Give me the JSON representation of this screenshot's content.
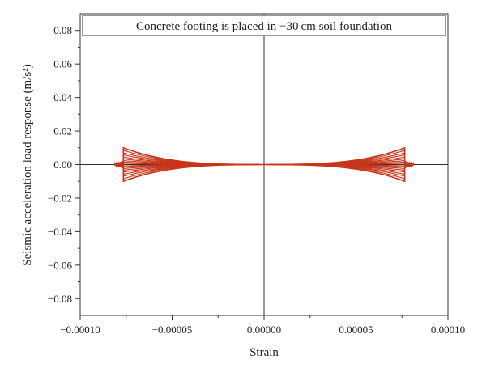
{
  "chart_data": {
    "type": "line",
    "title": "",
    "annotation": "Concrete footing is placed in −30 cm soil foundation",
    "xlabel": "Strain",
    "ylabel": "Seismic acceleration load response (m/s²)",
    "xlim": [
      -0.0001,
      0.0001
    ],
    "ylim": [
      -0.09,
      0.09
    ],
    "x_ticks": [
      -0.0001,
      -5e-05,
      0,
      5e-05,
      0.0001
    ],
    "x_tick_labels": [
      "−0.00010",
      "−0.00005",
      "0.00000",
      "0.00005",
      "0.00010"
    ],
    "y_ticks": [
      -0.08,
      -0.06,
      -0.04,
      -0.02,
      0.0,
      0.02,
      0.04,
      0.06,
      0.08
    ],
    "y_tick_labels": [
      "−0.08",
      "−0.06",
      "−0.04",
      "−0.02",
      "0.00",
      "0.02",
      "0.04",
      "0.06",
      "0.08"
    ],
    "zero_lines": true,
    "grid": false,
    "series_color": "#c8361a",
    "loops": {
      "peak_strain": 7.65e-05,
      "tail_strain": 8.15e-05,
      "amplitudes": [
        0.01,
        0.0085,
        0.007,
        0.0058,
        0.0045,
        0.0034,
        0.0024,
        0.0015,
        0.0008
      ]
    }
  }
}
